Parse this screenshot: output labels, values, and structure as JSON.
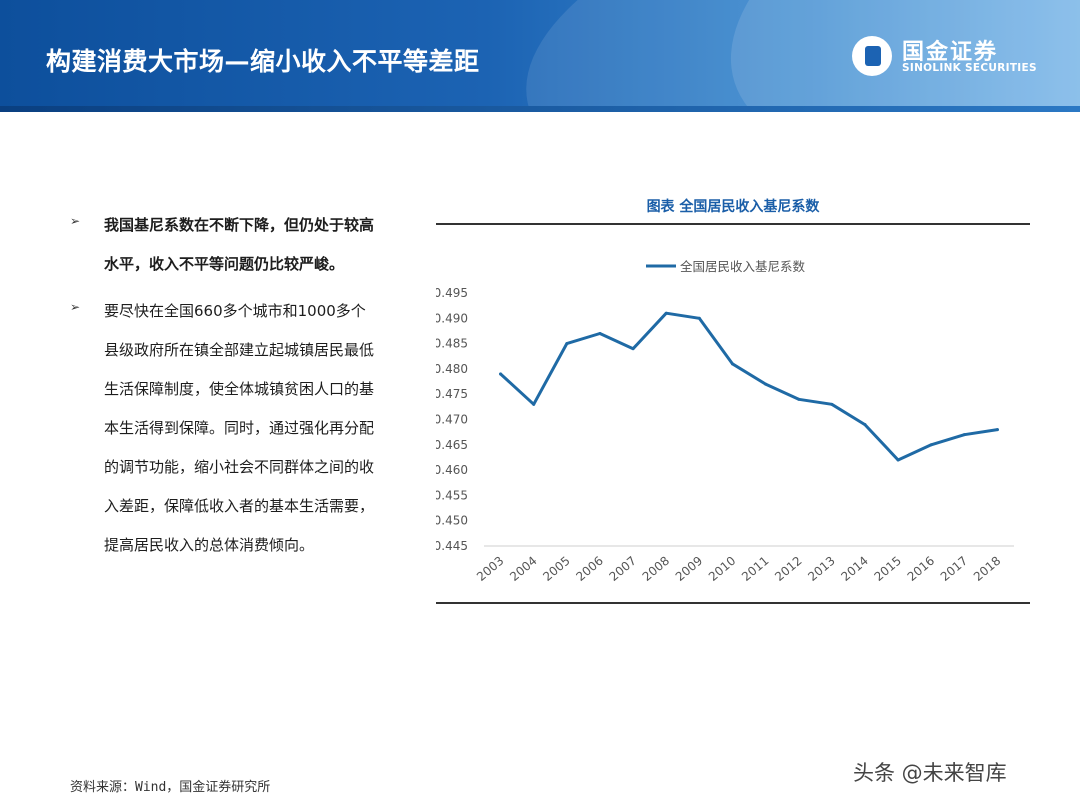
{
  "header": {
    "title": "构建消费大市场—缩小收入不平等差距",
    "brand_cn": "国金证券",
    "brand_en": "SINOLINK SECURITIES"
  },
  "bullets": [
    {
      "text": "我国基尼系数在不断下降，但仍处于较高水平，收入不平等问题仍比较严峻。",
      "bold": true
    },
    {
      "text": "要尽快在全国660多个城市和1000多个县级政府所在镇全部建立起城镇居民最低生活保障制度，使全体城镇贫困人口的基本生活得到保障。同时，通过强化再分配的调节功能，缩小社会不同群体之间的收入差距，保障低收入者的基本生活需要，提高居民收入的总体消费倾向。",
      "bold": false
    }
  ],
  "chart_title": "图表  全国居民收入基尼系数",
  "colors": {
    "line": "#1f6aa5",
    "title": "#1a5ea8",
    "header": "#1c63b3"
  },
  "chart_data": {
    "type": "line",
    "title": "图表  全国居民收入基尼系数",
    "xlabel": "",
    "ylabel": "",
    "legend": "top",
    "grid": false,
    "categories": [
      "2003",
      "2004",
      "2005",
      "2006",
      "2007",
      "2008",
      "2009",
      "2010",
      "2011",
      "2012",
      "2013",
      "2014",
      "2015",
      "2016",
      "2017",
      "2018"
    ],
    "series": [
      {
        "name": "全国居民收入基尼系数",
        "values": [
          0.479,
          0.473,
          0.485,
          0.487,
          0.484,
          0.491,
          0.49,
          0.481,
          0.477,
          0.474,
          0.473,
          0.469,
          0.462,
          0.465,
          0.467,
          0.468
        ]
      }
    ],
    "ylim": [
      0.445,
      0.495
    ],
    "yticks": [
      "0.495",
      "0.490",
      "0.485",
      "0.480",
      "0.475",
      "0.470",
      "0.465",
      "0.460",
      "0.455",
      "0.450",
      "0.445"
    ]
  },
  "source": "资料来源：Wind，国金证券研究所",
  "watermark": "头条 @未来智库"
}
